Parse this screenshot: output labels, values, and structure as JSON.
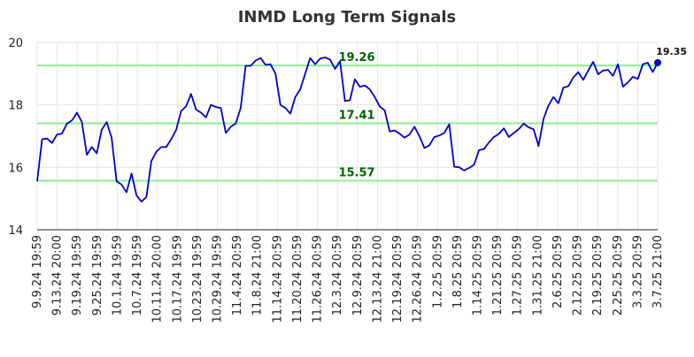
{
  "chart_data": {
    "type": "line",
    "title": "INMD Long Term Signals",
    "xlabel": "",
    "ylabel": "",
    "ylim": [
      14,
      20
    ],
    "yticks": [
      14,
      16,
      18,
      20
    ],
    "grid": true,
    "line_color": "#0000cc",
    "signal_color": "#90ee90",
    "x_ticks": [
      "9.9.24 19:59",
      "9.13.24 20:00",
      "9.19.24 19:59",
      "9.25.24 19:59",
      "10.1.24 19:59",
      "10.7.24 19:59",
      "10.11.24 20:00",
      "10.17.24 19:59",
      "10.23.24 19:59",
      "10.29.24 19:59",
      "11.4.24 20:59",
      "11.8.24 21:00",
      "11.14.24 20:59",
      "11.20.24 20:59",
      "11.26.24 20:59",
      "12.3.24 20:59",
      "12.9.24 20:59",
      "12.13.24 21:00",
      "12.19.24 20:59",
      "12.26.24 20:59",
      "1.2.25 20:59",
      "1.8.25 20:59",
      "1.14.25 20:59",
      "1.21.25 20:59",
      "1.27.25 20:59",
      "1.31.25 21:00",
      "2.6.25 20:59",
      "2.12.25 20:59",
      "2.19.25 20:59",
      "2.25.25 20:59",
      "3.3.25 20:59",
      "3.7.25 21:00"
    ],
    "signals": [
      {
        "label": "19.26",
        "value": 19.26
      },
      {
        "label": "17.41",
        "value": 17.41
      },
      {
        "label": "15.57",
        "value": 15.57
      }
    ],
    "last_value_label": "19.35",
    "values": [
      15.55,
      16.9,
      16.92,
      16.78,
      17.05,
      17.08,
      17.4,
      17.5,
      17.75,
      17.45,
      16.4,
      16.65,
      16.45,
      17.2,
      17.45,
      16.95,
      15.55,
      15.45,
      15.2,
      15.8,
      15.1,
      14.9,
      15.05,
      16.2,
      16.5,
      16.65,
      16.65,
      16.9,
      17.2,
      17.8,
      17.95,
      18.35,
      17.85,
      17.75,
      17.6,
      18.0,
      17.93,
      17.9,
      17.1,
      17.3,
      17.4,
      17.9,
      19.25,
      19.25,
      19.42,
      19.5,
      19.28,
      19.3,
      19.0,
      18.0,
      17.9,
      17.72,
      18.25,
      18.5,
      19.0,
      19.5,
      19.3,
      19.48,
      19.52,
      19.45,
      19.15,
      19.4,
      18.12,
      18.15,
      18.82,
      18.58,
      18.62,
      18.5,
      18.25,
      17.95,
      17.82,
      17.15,
      17.18,
      17.08,
      16.95,
      17.05,
      17.3,
      17.0,
      16.62,
      16.7,
      16.97,
      17.02,
      17.1,
      17.38,
      16.02,
      16.0,
      15.9,
      15.98,
      16.08,
      16.55,
      16.58,
      16.8,
      16.97,
      17.07,
      17.25,
      16.97,
      17.1,
      17.22,
      17.4,
      17.28,
      17.22,
      16.68,
      17.55,
      17.98,
      18.25,
      18.05,
      18.55,
      18.6,
      18.88,
      19.05,
      18.8,
      19.1,
      19.38,
      18.98,
      19.1,
      19.12,
      18.93,
      19.3,
      18.58,
      18.72,
      18.9,
      18.83,
      19.3,
      19.35,
      19.05,
      19.35
    ]
  }
}
